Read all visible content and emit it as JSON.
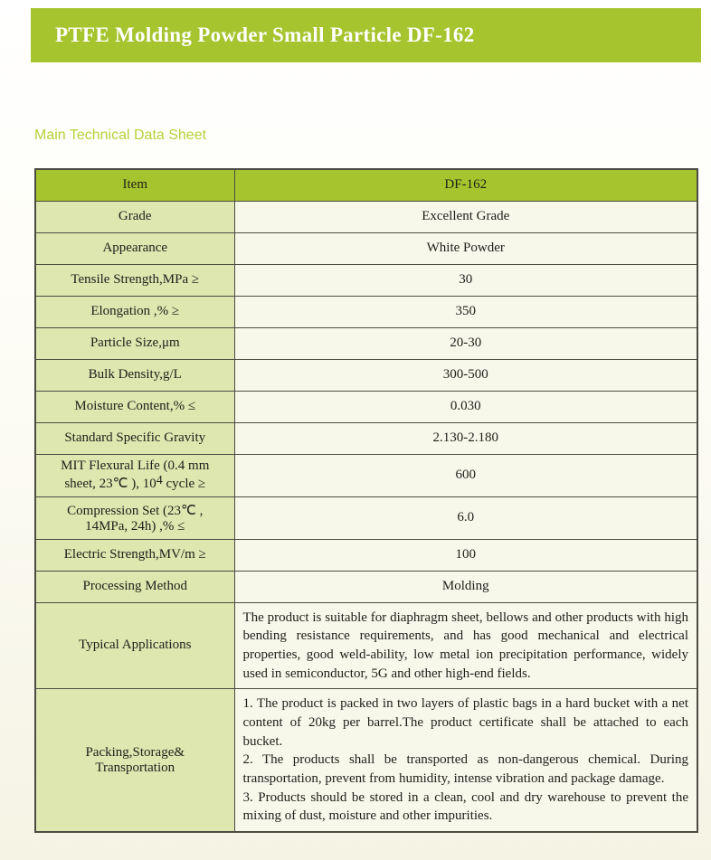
{
  "colors": {
    "banner_green": "#a6c42d",
    "label_cell_green": "#dde7af",
    "value_cell_cream": "#f7f7ea",
    "border_gray": "#4c4c42",
    "heading_green": "#b6d239",
    "title_text": "#ffffff"
  },
  "header": {
    "title": "PTFE Molding Powder Small Particle DF-162"
  },
  "section": {
    "heading": "Main Technical Data Sheet"
  },
  "table": {
    "head": {
      "label": "Item",
      "value": "DF-162"
    },
    "rows": [
      {
        "label": "Grade",
        "value": "Excellent Grade"
      },
      {
        "label": "Appearance",
        "value": "White Powder"
      },
      {
        "label": "Tensile Strength,MPa ≥",
        "value": "30"
      },
      {
        "label": "Elongation ,% ≥",
        "value": "350"
      },
      {
        "label": "Particle Size,μm",
        "value": "20-30"
      },
      {
        "label": "Bulk Density,g/L",
        "value": "300-500"
      },
      {
        "label": "Moisture Content,% ≤",
        "value": "0.030"
      },
      {
        "label": "Standard Specific Gravity",
        "value": "2.130-2.180"
      },
      {
        "label_line1": "MIT Flexural Life (0.4 mm",
        "label_line2_pre": "sheet, 23℃ ), 10",
        "label_sup": "4",
        "label_line2_post": " cycle ≥",
        "value": "600"
      },
      {
        "label_line1": "Compression Set (23℃ ,",
        "label_line2": "14MPa, 24h) ,% ≤",
        "value": "6.0"
      },
      {
        "label": "Electric Strength,MV/m ≥",
        "value": "100"
      },
      {
        "label": "Processing Method",
        "value": "Molding"
      },
      {
        "label": "Typical Applications",
        "value": "The product is suitable for diaphragm sheet, bellows and other products with high bending resistance requirements, and has good mechanical and electrical properties, good weld-ability, low metal ion precipitation performance, widely used in semiconductor, 5G and other high-end fields."
      },
      {
        "label_line1": "Packing,Storage&",
        "label_line2": "Transportation",
        "value_items": [
          "1. The product is packed in two layers of plastic bags in a hard bucket with a net content of 20kg per barrel.The product certificate shall be attached to each bucket.",
          "2. The products shall be transported as non-dangerous chemical. During transportation, prevent from humidity, intense vibration and package damage.",
          "3. Products should be stored in a clean, cool and dry warehouse to prevent the mixing of dust, moisture and other impurities."
        ]
      }
    ]
  }
}
